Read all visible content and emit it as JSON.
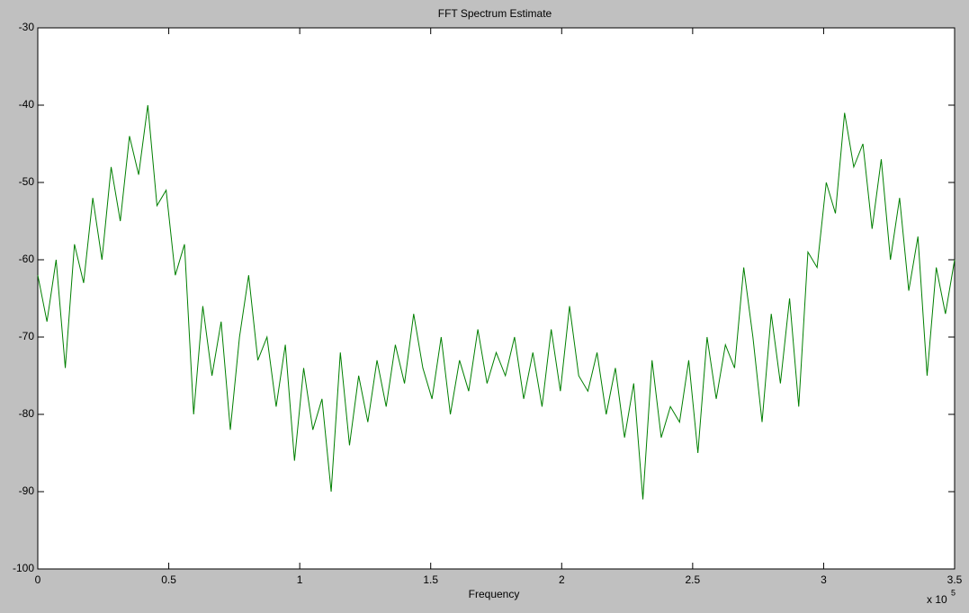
{
  "chart_data": {
    "type": "line",
    "title": "FFT Spectrum Estimate",
    "x_label": "Frequency",
    "x_multiplier": {
      "base": "x 10",
      "exponent": "5"
    },
    "xlim": [
      0,
      3.5
    ],
    "xticks": [
      0,
      0.5,
      1,
      1.5,
      2,
      2.5,
      3,
      3.5
    ],
    "ylim": [
      -100,
      -30
    ],
    "yticks": [
      -100,
      -90,
      -80,
      -70,
      -60,
      -50,
      -40,
      -30
    ],
    "color": "#007f00",
    "x": [
      0,
      0.035,
      0.07,
      0.105,
      0.14,
      0.175,
      0.21,
      0.245,
      0.28,
      0.315,
      0.35,
      0.385,
      0.42,
      0.455,
      0.49,
      0.525,
      0.56,
      0.595,
      0.63,
      0.665,
      0.7,
      0.735,
      0.77,
      0.805,
      0.84,
      0.875,
      0.91,
      0.945,
      0.98,
      1.015,
      1.05,
      1.085,
      1.12,
      1.155,
      1.19,
      1.225,
      1.26,
      1.295,
      1.33,
      1.365,
      1.4,
      1.435,
      1.47,
      1.505,
      1.54,
      1.575,
      1.61,
      1.645,
      1.68,
      1.715,
      1.75,
      1.785,
      1.82,
      1.855,
      1.89,
      1.925,
      1.96,
      1.995,
      2.03,
      2.065,
      2.1,
      2.135,
      2.17,
      2.205,
      2.24,
      2.275,
      2.31,
      2.345,
      2.38,
      2.415,
      2.45,
      2.485,
      2.52,
      2.555,
      2.59,
      2.625,
      2.66,
      2.695,
      2.73,
      2.765,
      2.8,
      2.835,
      2.87,
      2.905,
      2.94,
      2.975,
      3.01,
      3.045,
      3.08,
      3.115,
      3.15,
      3.185,
      3.22,
      3.255,
      3.29,
      3.325,
      3.36,
      3.395,
      3.43,
      3.465,
      3.5
    ],
    "values": [
      -62,
      -68,
      -60,
      -74,
      -58,
      -63,
      -52,
      -60,
      -48,
      -55,
      -44,
      -49,
      -40,
      -53,
      -51,
      -62,
      -58,
      -80,
      -66,
      -75,
      -68,
      -82,
      -70,
      -62,
      -73,
      -70,
      -79,
      -71,
      -86,
      -74,
      -82,
      -78,
      -90,
      -72,
      -84,
      -75,
      -81,
      -73,
      -79,
      -71,
      -76,
      -67,
      -74,
      -78,
      -70,
      -80,
      -73,
      -77,
      -69,
      -76,
      -72,
      -75,
      -70,
      -78,
      -72,
      -79,
      -69,
      -77,
      -66,
      -75,
      -77,
      -72,
      -80,
      -74,
      -83,
      -76,
      -91,
      -73,
      -83,
      -79,
      -81,
      -73,
      -85,
      -70,
      -78,
      -71,
      -74,
      -61,
      -70,
      -81,
      -67,
      -76,
      -65,
      -79,
      -59,
      -61,
      -50,
      -54,
      -41,
      -48,
      -45,
      -56,
      -47,
      -60,
      -52,
      -64,
      -57,
      -75,
      -61,
      -67,
      -60
    ]
  }
}
